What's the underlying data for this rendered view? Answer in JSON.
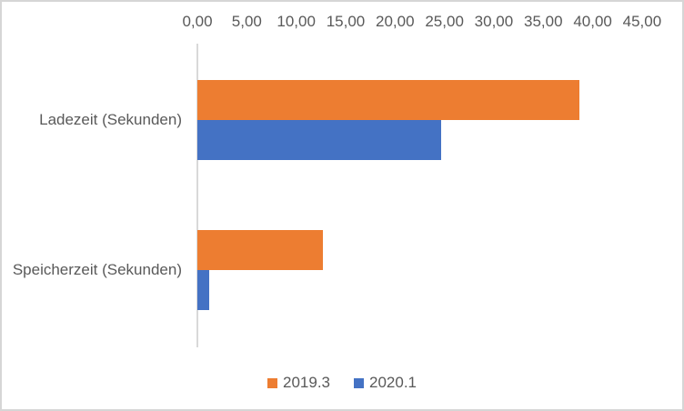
{
  "chart_data": {
    "type": "bar",
    "orientation": "horizontal",
    "title": "",
    "categories": [
      "Ladezeit (Sekunden)",
      "Speicherzeit (Sekunden)"
    ],
    "series": [
      {
        "name": "2019.3",
        "color": "#ED7D31",
        "values": [
          38.7,
          12.7
        ]
      },
      {
        "name": "2020.1",
        "color": "#4472C4",
        "values": [
          24.7,
          1.2
        ]
      }
    ],
    "value_axis": {
      "position": "top",
      "min": 0,
      "max": 45,
      "step": 5,
      "tick_labels": [
        "0,00",
        "5,00",
        "10,00",
        "15,00",
        "20,00",
        "25,00",
        "30,00",
        "35,00",
        "40,00",
        "45,00"
      ]
    },
    "grid": false,
    "legend": {
      "position": "bottom",
      "entries": [
        {
          "label": "2019.3",
          "color": "#ED7D31"
        },
        {
          "label": "2020.1",
          "color": "#4472C4"
        }
      ]
    },
    "colors": {
      "text": "#595959",
      "axis_line": "#D9D9D9",
      "frame_border": "#D6D6D6",
      "background": "#FFFFFF"
    }
  }
}
